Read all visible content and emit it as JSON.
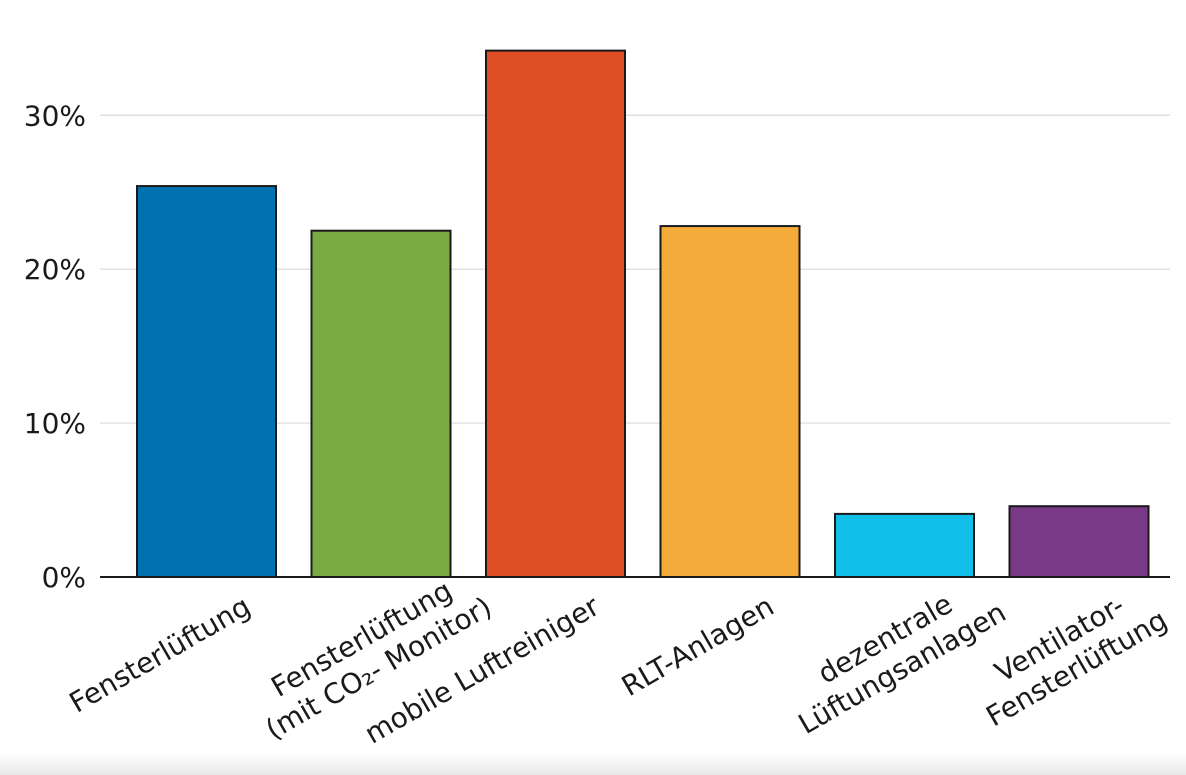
{
  "chart_data": {
    "type": "bar",
    "title": "",
    "xlabel": "",
    "ylabel": "",
    "ylim": [
      0,
      34.5
    ],
    "yticks": [
      0,
      10,
      20,
      30
    ],
    "ytick_labels": [
      "0%",
      "10%",
      "20%",
      "30%"
    ],
    "grid": true,
    "categories": [
      {
        "label_lines": [
          "Fensterlüftung"
        ],
        "value": 25.4,
        "color": "#0072b2"
      },
      {
        "label_lines": [
          "Fensterlüftung",
          "(mit CO₂- Monitor)"
        ],
        "value": 22.5,
        "color": "#7aaa41"
      },
      {
        "label_lines": [
          "mobile Luftreiniger"
        ],
        "value": 34.2,
        "color": "#e04e25"
      },
      {
        "label_lines": [
          "RLT-Anlagen"
        ],
        "value": 22.8,
        "color": "#f5ab3a"
      },
      {
        "label_lines": [
          "dezentrale",
          "Lüftungsanlagen"
        ],
        "value": 4.1,
        "color": "#12bfe8"
      },
      {
        "label_lines": [
          "Ventilator-",
          "Fensterlüftung"
        ],
        "value": 4.6,
        "color": "#7b3a87"
      }
    ]
  }
}
